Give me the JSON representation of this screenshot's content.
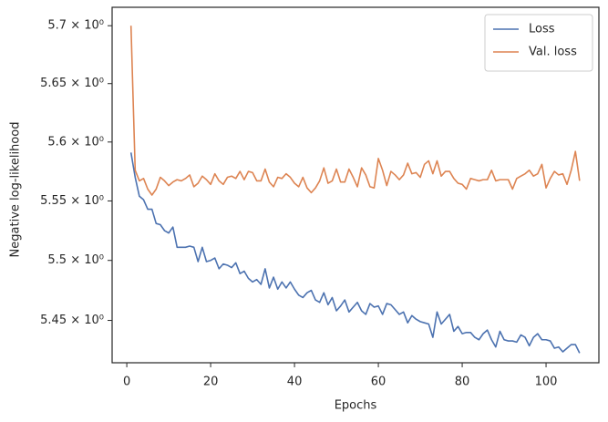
{
  "chart_data": {
    "type": "line",
    "xlabel": "Epochs",
    "ylabel": "Negative log-likelihood",
    "yscale": "log",
    "legend": "upper right",
    "grid": false,
    "xlim": [
      -3.5,
      112.6
    ],
    "xticks": [
      0,
      20,
      40,
      60,
      80,
      100
    ],
    "ylim": [
      5.415,
      5.716
    ],
    "yticks": [
      {
        "value": 5.45,
        "label": "5.45 × 10⁰"
      },
      {
        "value": 5.5,
        "label": "5.5 × 10⁰"
      },
      {
        "value": 5.55,
        "label": "5.55 × 10⁰"
      },
      {
        "value": 5.6,
        "label": "5.6 × 10⁰"
      },
      {
        "value": 5.65,
        "label": "5.65 × 10⁰"
      },
      {
        "value": 5.7,
        "label": "5.7 × 10⁰"
      }
    ],
    "x": [
      1,
      2,
      3,
      4,
      5,
      6,
      7,
      8,
      9,
      10,
      11,
      12,
      13,
      14,
      15,
      16,
      17,
      18,
      19,
      20,
      21,
      22,
      23,
      24,
      25,
      26,
      27,
      28,
      29,
      30,
      31,
      32,
      33,
      34,
      35,
      36,
      37,
      38,
      39,
      40,
      41,
      42,
      43,
      44,
      45,
      46,
      47,
      48,
      49,
      50,
      51,
      52,
      53,
      54,
      55,
      56,
      57,
      58,
      59,
      60,
      61,
      62,
      63,
      64,
      65,
      66,
      67,
      68,
      69,
      70,
      71,
      72,
      73,
      74,
      75,
      76,
      77,
      78,
      79,
      80,
      81,
      82,
      83,
      84,
      85,
      86,
      87,
      88,
      89,
      90,
      91,
      92,
      93,
      94,
      95,
      96,
      97,
      98,
      99,
      100,
      101,
      102,
      103,
      104,
      105,
      106,
      107,
      108
    ],
    "series": [
      {
        "name": "Loss",
        "color": "#4c72b0",
        "values": [
          5.591,
          5.57,
          5.554,
          5.551,
          5.543,
          5.543,
          5.531,
          5.53,
          5.525,
          5.523,
          5.528,
          5.511,
          5.511,
          5.511,
          5.512,
          5.511,
          5.499,
          5.511,
          5.499,
          5.5,
          5.502,
          5.493,
          5.497,
          5.496,
          5.494,
          5.498,
          5.489,
          5.491,
          5.485,
          5.482,
          5.484,
          5.48,
          5.493,
          5.477,
          5.486,
          5.476,
          5.482,
          5.477,
          5.482,
          5.476,
          5.471,
          5.469,
          5.473,
          5.475,
          5.467,
          5.465,
          5.473,
          5.463,
          5.469,
          5.458,
          5.462,
          5.467,
          5.457,
          5.461,
          5.465,
          5.458,
          5.455,
          5.464,
          5.461,
          5.462,
          5.455,
          5.464,
          5.463,
          5.459,
          5.455,
          5.457,
          5.448,
          5.454,
          5.451,
          5.449,
          5.448,
          5.447,
          5.436,
          5.457,
          5.447,
          5.451,
          5.455,
          5.441,
          5.445,
          5.439,
          5.44,
          5.44,
          5.436,
          5.434,
          5.439,
          5.442,
          5.434,
          5.428,
          5.441,
          5.434,
          5.433,
          5.433,
          5.432,
          5.438,
          5.436,
          5.429,
          5.436,
          5.439,
          5.434,
          5.434,
          5.433,
          5.427,
          5.428,
          5.424,
          5.427,
          5.43,
          5.43,
          5.423
        ]
      },
      {
        "name": "Val. loss",
        "color": "#dd8452",
        "values": [
          5.7,
          5.576,
          5.567,
          5.569,
          5.56,
          5.555,
          5.56,
          5.57,
          5.567,
          5.563,
          5.566,
          5.568,
          5.567,
          5.569,
          5.572,
          5.562,
          5.565,
          5.571,
          5.568,
          5.564,
          5.573,
          5.567,
          5.564,
          5.57,
          5.571,
          5.569,
          5.575,
          5.568,
          5.575,
          5.574,
          5.567,
          5.567,
          5.577,
          5.566,
          5.562,
          5.57,
          5.569,
          5.573,
          5.57,
          5.565,
          5.562,
          5.57,
          5.561,
          5.557,
          5.561,
          5.567,
          5.578,
          5.565,
          5.567,
          5.577,
          5.566,
          5.566,
          5.577,
          5.57,
          5.562,
          5.578,
          5.572,
          5.562,
          5.561,
          5.586,
          5.576,
          5.563,
          5.575,
          5.572,
          5.568,
          5.572,
          5.582,
          5.573,
          5.574,
          5.57,
          5.581,
          5.584,
          5.573,
          5.584,
          5.571,
          5.575,
          5.575,
          5.569,
          5.565,
          5.564,
          5.56,
          5.569,
          5.568,
          5.567,
          5.568,
          5.568,
          5.576,
          5.567,
          5.568,
          5.568,
          5.568,
          5.56,
          5.569,
          5.571,
          5.573,
          5.576,
          5.571,
          5.573,
          5.581,
          5.561,
          5.569,
          5.575,
          5.572,
          5.573,
          5.564,
          5.576,
          5.592,
          5.567
        ]
      }
    ]
  }
}
